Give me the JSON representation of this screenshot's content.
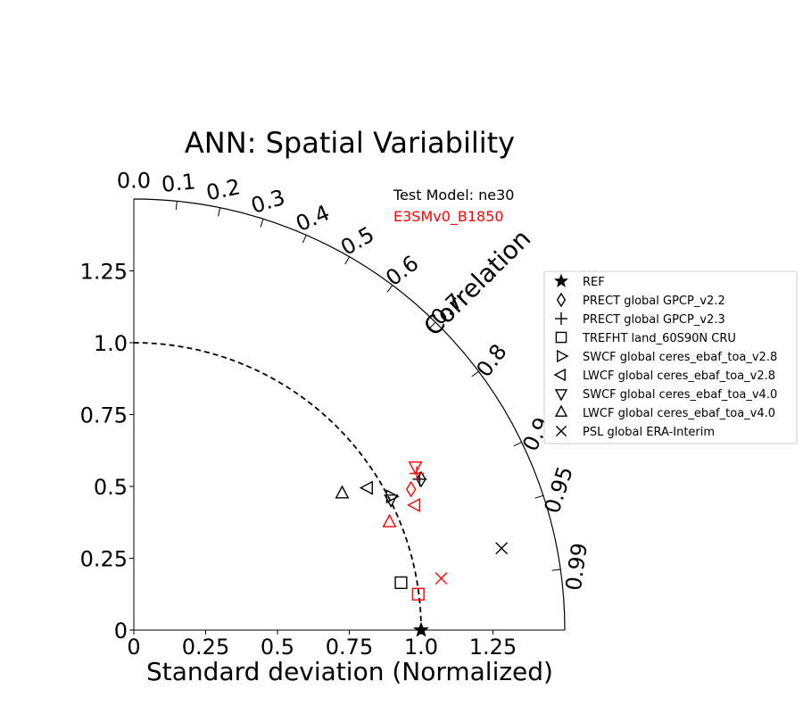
{
  "chart_data": {
    "type": "scatter",
    "subtype": "taylor-diagram",
    "title": "ANN: Spatial Variability",
    "xlabel": "Standard deviation (Normalized)",
    "ylabel": "",
    "xlim": [
      0,
      1.5
    ],
    "ylim": [
      0,
      1.5
    ],
    "x_ticks": [
      "0",
      "0.25",
      "0.5",
      "0.75",
      "1.0",
      "1.25"
    ],
    "y_ticks": [
      "0",
      "0.25",
      "0.5",
      "0.75",
      "1.0",
      "1.25"
    ],
    "correlation_label": "Correlation",
    "correlation_ticks": [
      "0.0",
      "0.1",
      "0.2",
      "0.3",
      "0.4",
      "0.5",
      "0.6",
      "0.7",
      "0.8",
      "0.9",
      "0.95",
      "0.99"
    ],
    "reference_std": 1.0,
    "legend_placement": "right",
    "test_model_label": "Test Model: ne30",
    "ref_model_label": "E3SMv0_B1850",
    "colors": {
      "test": "#000000",
      "ref": "#ff0000"
    },
    "legend": [
      {
        "name": "REF",
        "marker": "star"
      },
      {
        "name": "PRECT global GPCP_v2.2",
        "marker": "diamond"
      },
      {
        "name": "PRECT global GPCP_v2.3",
        "marker": "plus"
      },
      {
        "name": "TREFHT land_60S90N CRU",
        "marker": "square"
      },
      {
        "name": "SWCF global ceres_ebaf_toa_v2.8",
        "marker": "triangle-right"
      },
      {
        "name": "LWCF global ceres_ebaf_toa_v2.8",
        "marker": "triangle-left"
      },
      {
        "name": "SWCF global ceres_ebaf_toa_v4.0",
        "marker": "triangle-down"
      },
      {
        "name": "LWCF global ceres_ebaf_toa_v4.0",
        "marker": "triangle-up"
      },
      {
        "name": "PSL global ERA-Interim",
        "marker": "x"
      }
    ],
    "points": [
      {
        "marker": "star",
        "group": "test",
        "x": 1.0,
        "y": 0.0
      },
      {
        "marker": "diamond",
        "group": "test",
        "x": 1.0,
        "y": 0.525
      },
      {
        "marker": "plus",
        "group": "test",
        "x": 0.995,
        "y": 0.525
      },
      {
        "marker": "square",
        "group": "test",
        "x": 0.93,
        "y": 0.165
      },
      {
        "marker": "triangle-right",
        "group": "test",
        "x": 0.895,
        "y": 0.465
      },
      {
        "marker": "triangle-left",
        "group": "test",
        "x": 0.815,
        "y": 0.495
      },
      {
        "marker": "triangle-down",
        "group": "test",
        "x": 0.895,
        "y": 0.455
      },
      {
        "marker": "triangle-up",
        "group": "test",
        "x": 0.725,
        "y": 0.475
      },
      {
        "marker": "x",
        "group": "test",
        "x": 1.28,
        "y": 0.285
      },
      {
        "marker": "diamond",
        "group": "ref",
        "x": 0.965,
        "y": 0.49
      },
      {
        "marker": "plus",
        "group": "ref",
        "x": 0.985,
        "y": 0.545
      },
      {
        "marker": "square",
        "group": "ref",
        "x": 0.99,
        "y": 0.125
      },
      {
        "marker": "triangle-left",
        "group": "ref",
        "x": 0.98,
        "y": 0.435
      },
      {
        "marker": "triangle-down",
        "group": "ref",
        "x": 0.98,
        "y": 0.57
      },
      {
        "marker": "triangle-up",
        "group": "ref",
        "x": 0.89,
        "y": 0.375
      },
      {
        "marker": "x",
        "group": "ref",
        "x": 1.07,
        "y": 0.18
      }
    ]
  }
}
